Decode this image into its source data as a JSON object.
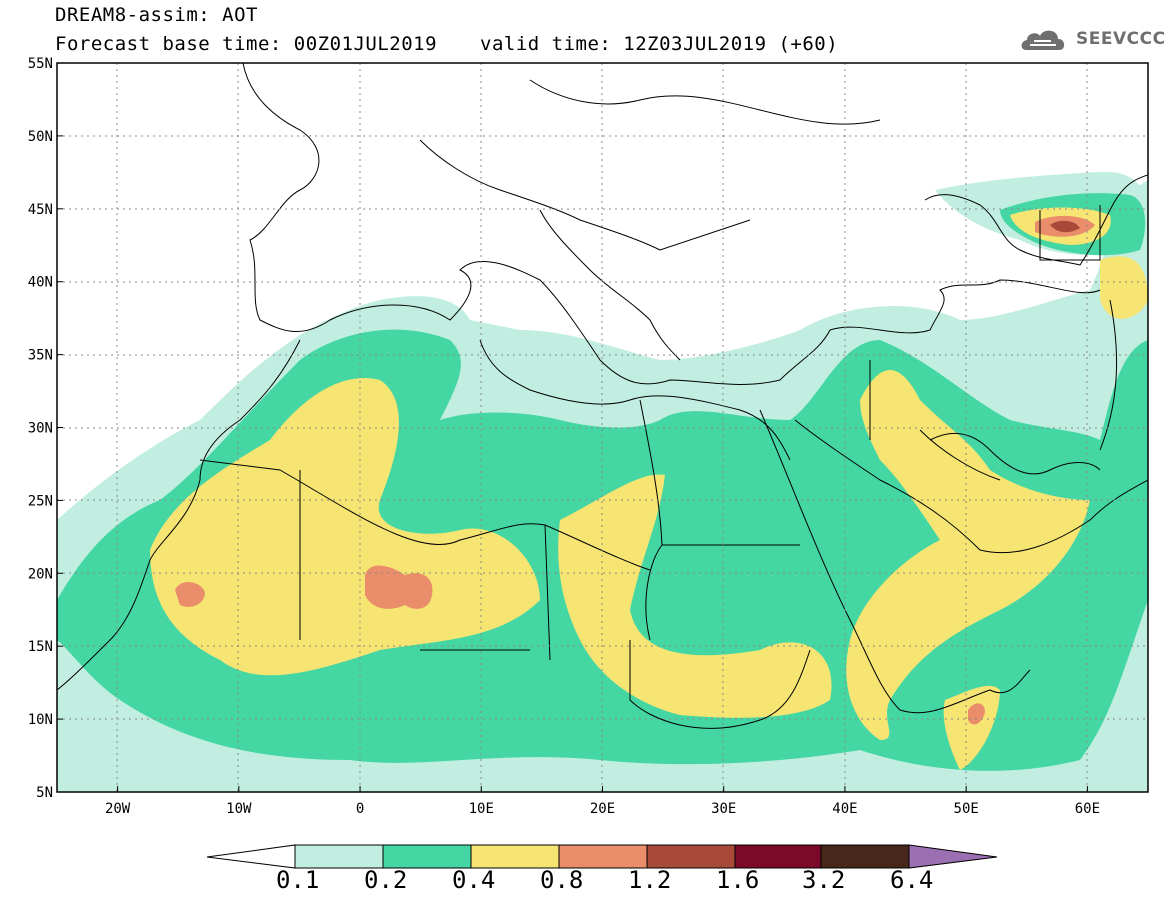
{
  "header": {
    "title": "DREAM8-assim: AOT",
    "base_time": "Forecast base time: 00Z01JUL2019",
    "valid_time": "valid time: 12Z03JUL2019 (+60)",
    "logo": "SEEVCCC"
  },
  "map": {
    "lat_range": [
      5,
      55
    ],
    "lon_range": [
      -25,
      65
    ],
    "lat_labels": [
      "55N",
      "50N",
      "45N",
      "40N",
      "35N",
      "30N",
      "25N",
      "20N",
      "15N",
      "10N",
      "5N"
    ],
    "lon_labels": [
      "20W",
      "10W",
      "0",
      "10E",
      "20E",
      "30E",
      "40E",
      "50E",
      "60E"
    ]
  },
  "legend": {
    "levels": [
      "0.1",
      "0.2",
      "0.4",
      "0.8",
      "1.2",
      "1.6",
      "3.2",
      "6.4"
    ],
    "colors": [
      "#ffffff",
      "#c2eee2",
      "#45d7a3",
      "#f6e473",
      "#e98d6a",
      "#a84a3a",
      "#7b0a2a",
      "#47271a",
      "#9b6fb2"
    ]
  }
}
